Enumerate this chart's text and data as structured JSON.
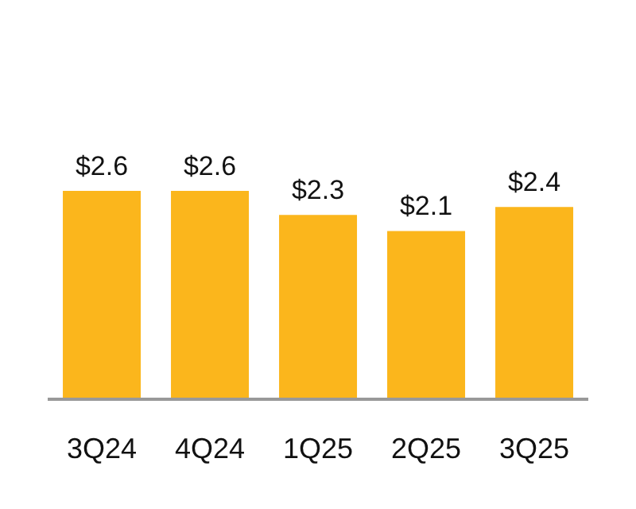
{
  "chart_data": {
    "type": "bar",
    "categories": [
      "3Q24",
      "4Q24",
      "1Q25",
      "2Q25",
      "3Q25"
    ],
    "values": [
      2.6,
      2.6,
      2.3,
      2.1,
      2.4
    ],
    "value_labels": [
      "$2.6",
      "$2.6",
      "$2.3",
      "$2.1",
      "$2.4"
    ],
    "color": "#fbb61c",
    "tick_labels": "x",
    "grid": false,
    "legend": false
  }
}
